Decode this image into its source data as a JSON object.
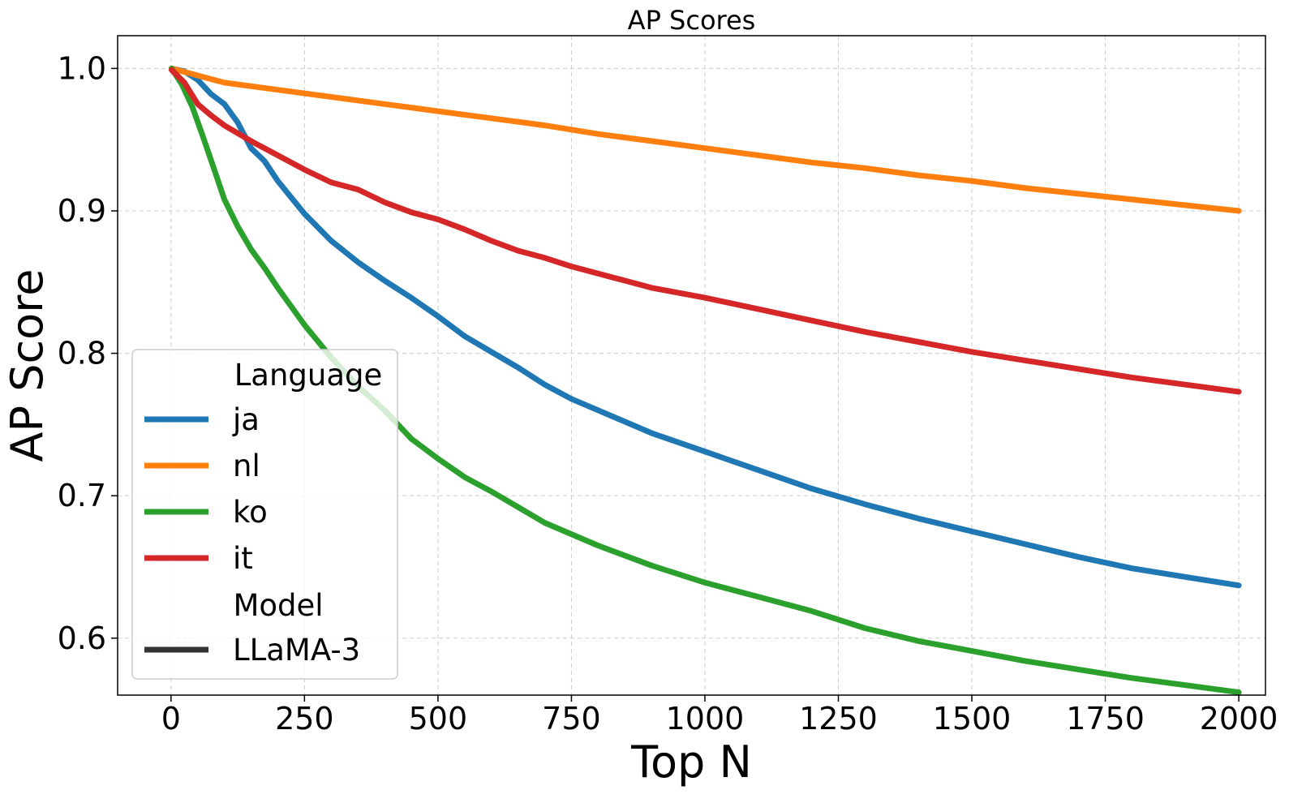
{
  "chart_data": {
    "type": "line",
    "title": "AP Scores",
    "xlabel": "Top N",
    "ylabel": "AP Score",
    "xlim": [
      -100,
      2050
    ],
    "ylim": [
      0.56,
      1.023
    ],
    "xticks": [
      0,
      250,
      500,
      750,
      1000,
      1250,
      1500,
      1750,
      2000
    ],
    "xtick_labels": [
      "0",
      "250",
      "500",
      "750",
      "1000",
      "1250",
      "1500",
      "1750",
      "2000"
    ],
    "yticks": [
      0.6,
      0.7,
      0.8,
      0.9,
      1.0
    ],
    "ytick_labels": [
      "0.6",
      "0.7",
      "0.8",
      "0.9",
      "1.0"
    ],
    "grid": true,
    "legend": {
      "placement": "lower-left",
      "language_title": "Language",
      "model_title": "Model",
      "model_entries": [
        {
          "name": "LLaMA-3",
          "color": "#333333"
        }
      ]
    },
    "series": [
      {
        "name": "ja",
        "color": "#1f77b4",
        "x": [
          1,
          25,
          50,
          75,
          100,
          125,
          150,
          175,
          200,
          250,
          300,
          350,
          400,
          450,
          500,
          550,
          600,
          650,
          700,
          750,
          800,
          900,
          1000,
          1100,
          1200,
          1300,
          1400,
          1500,
          1600,
          1700,
          1800,
          1900,
          2000
        ],
        "y": [
          1.0,
          0.998,
          0.992,
          0.982,
          0.975,
          0.962,
          0.944,
          0.935,
          0.921,
          0.898,
          0.879,
          0.864,
          0.851,
          0.839,
          0.826,
          0.812,
          0.801,
          0.79,
          0.778,
          0.768,
          0.76,
          0.744,
          0.731,
          0.718,
          0.705,
          0.694,
          0.684,
          0.675,
          0.666,
          0.657,
          0.649,
          0.643,
          0.637
        ]
      },
      {
        "name": "nl",
        "color": "#ff7f0e",
        "x": [
          1,
          100,
          200,
          300,
          400,
          500,
          600,
          700,
          800,
          900,
          1000,
          1100,
          1200,
          1300,
          1400,
          1500,
          1600,
          1700,
          1800,
          1900,
          2000
        ],
        "y": [
          1.0,
          0.99,
          0.985,
          0.98,
          0.975,
          0.97,
          0.965,
          0.96,
          0.954,
          0.949,
          0.944,
          0.939,
          0.934,
          0.93,
          0.925,
          0.921,
          0.916,
          0.912,
          0.908,
          0.904,
          0.9
        ]
      },
      {
        "name": "ko",
        "color": "#2ca02c",
        "x": [
          1,
          20,
          40,
          60,
          80,
          100,
          125,
          150,
          175,
          200,
          250,
          300,
          350,
          400,
          450,
          500,
          550,
          600,
          650,
          700,
          750,
          800,
          900,
          1000,
          1100,
          1200,
          1300,
          1400,
          1500,
          1600,
          1700,
          1800,
          1900,
          2000
        ],
        "y": [
          1.0,
          0.989,
          0.973,
          0.952,
          0.93,
          0.908,
          0.889,
          0.873,
          0.86,
          0.846,
          0.82,
          0.797,
          0.777,
          0.76,
          0.74,
          0.726,
          0.713,
          0.703,
          0.692,
          0.681,
          0.673,
          0.665,
          0.651,
          0.639,
          0.629,
          0.619,
          0.607,
          0.598,
          0.591,
          0.584,
          0.578,
          0.572,
          0.567,
          0.562
        ]
      },
      {
        "name": "it",
        "color": "#d62728",
        "x": [
          1,
          25,
          50,
          75,
          100,
          150,
          200,
          250,
          300,
          350,
          400,
          450,
          500,
          550,
          600,
          650,
          700,
          750,
          800,
          900,
          1000,
          1100,
          1200,
          1300,
          1400,
          1500,
          1600,
          1700,
          1800,
          1900,
          2000
        ],
        "y": [
          0.999,
          0.99,
          0.975,
          0.967,
          0.96,
          0.949,
          0.939,
          0.929,
          0.92,
          0.915,
          0.906,
          0.899,
          0.894,
          0.887,
          0.879,
          0.872,
          0.867,
          0.861,
          0.856,
          0.846,
          0.839,
          0.831,
          0.823,
          0.815,
          0.808,
          0.801,
          0.795,
          0.789,
          0.783,
          0.778,
          0.773
        ]
      }
    ]
  }
}
